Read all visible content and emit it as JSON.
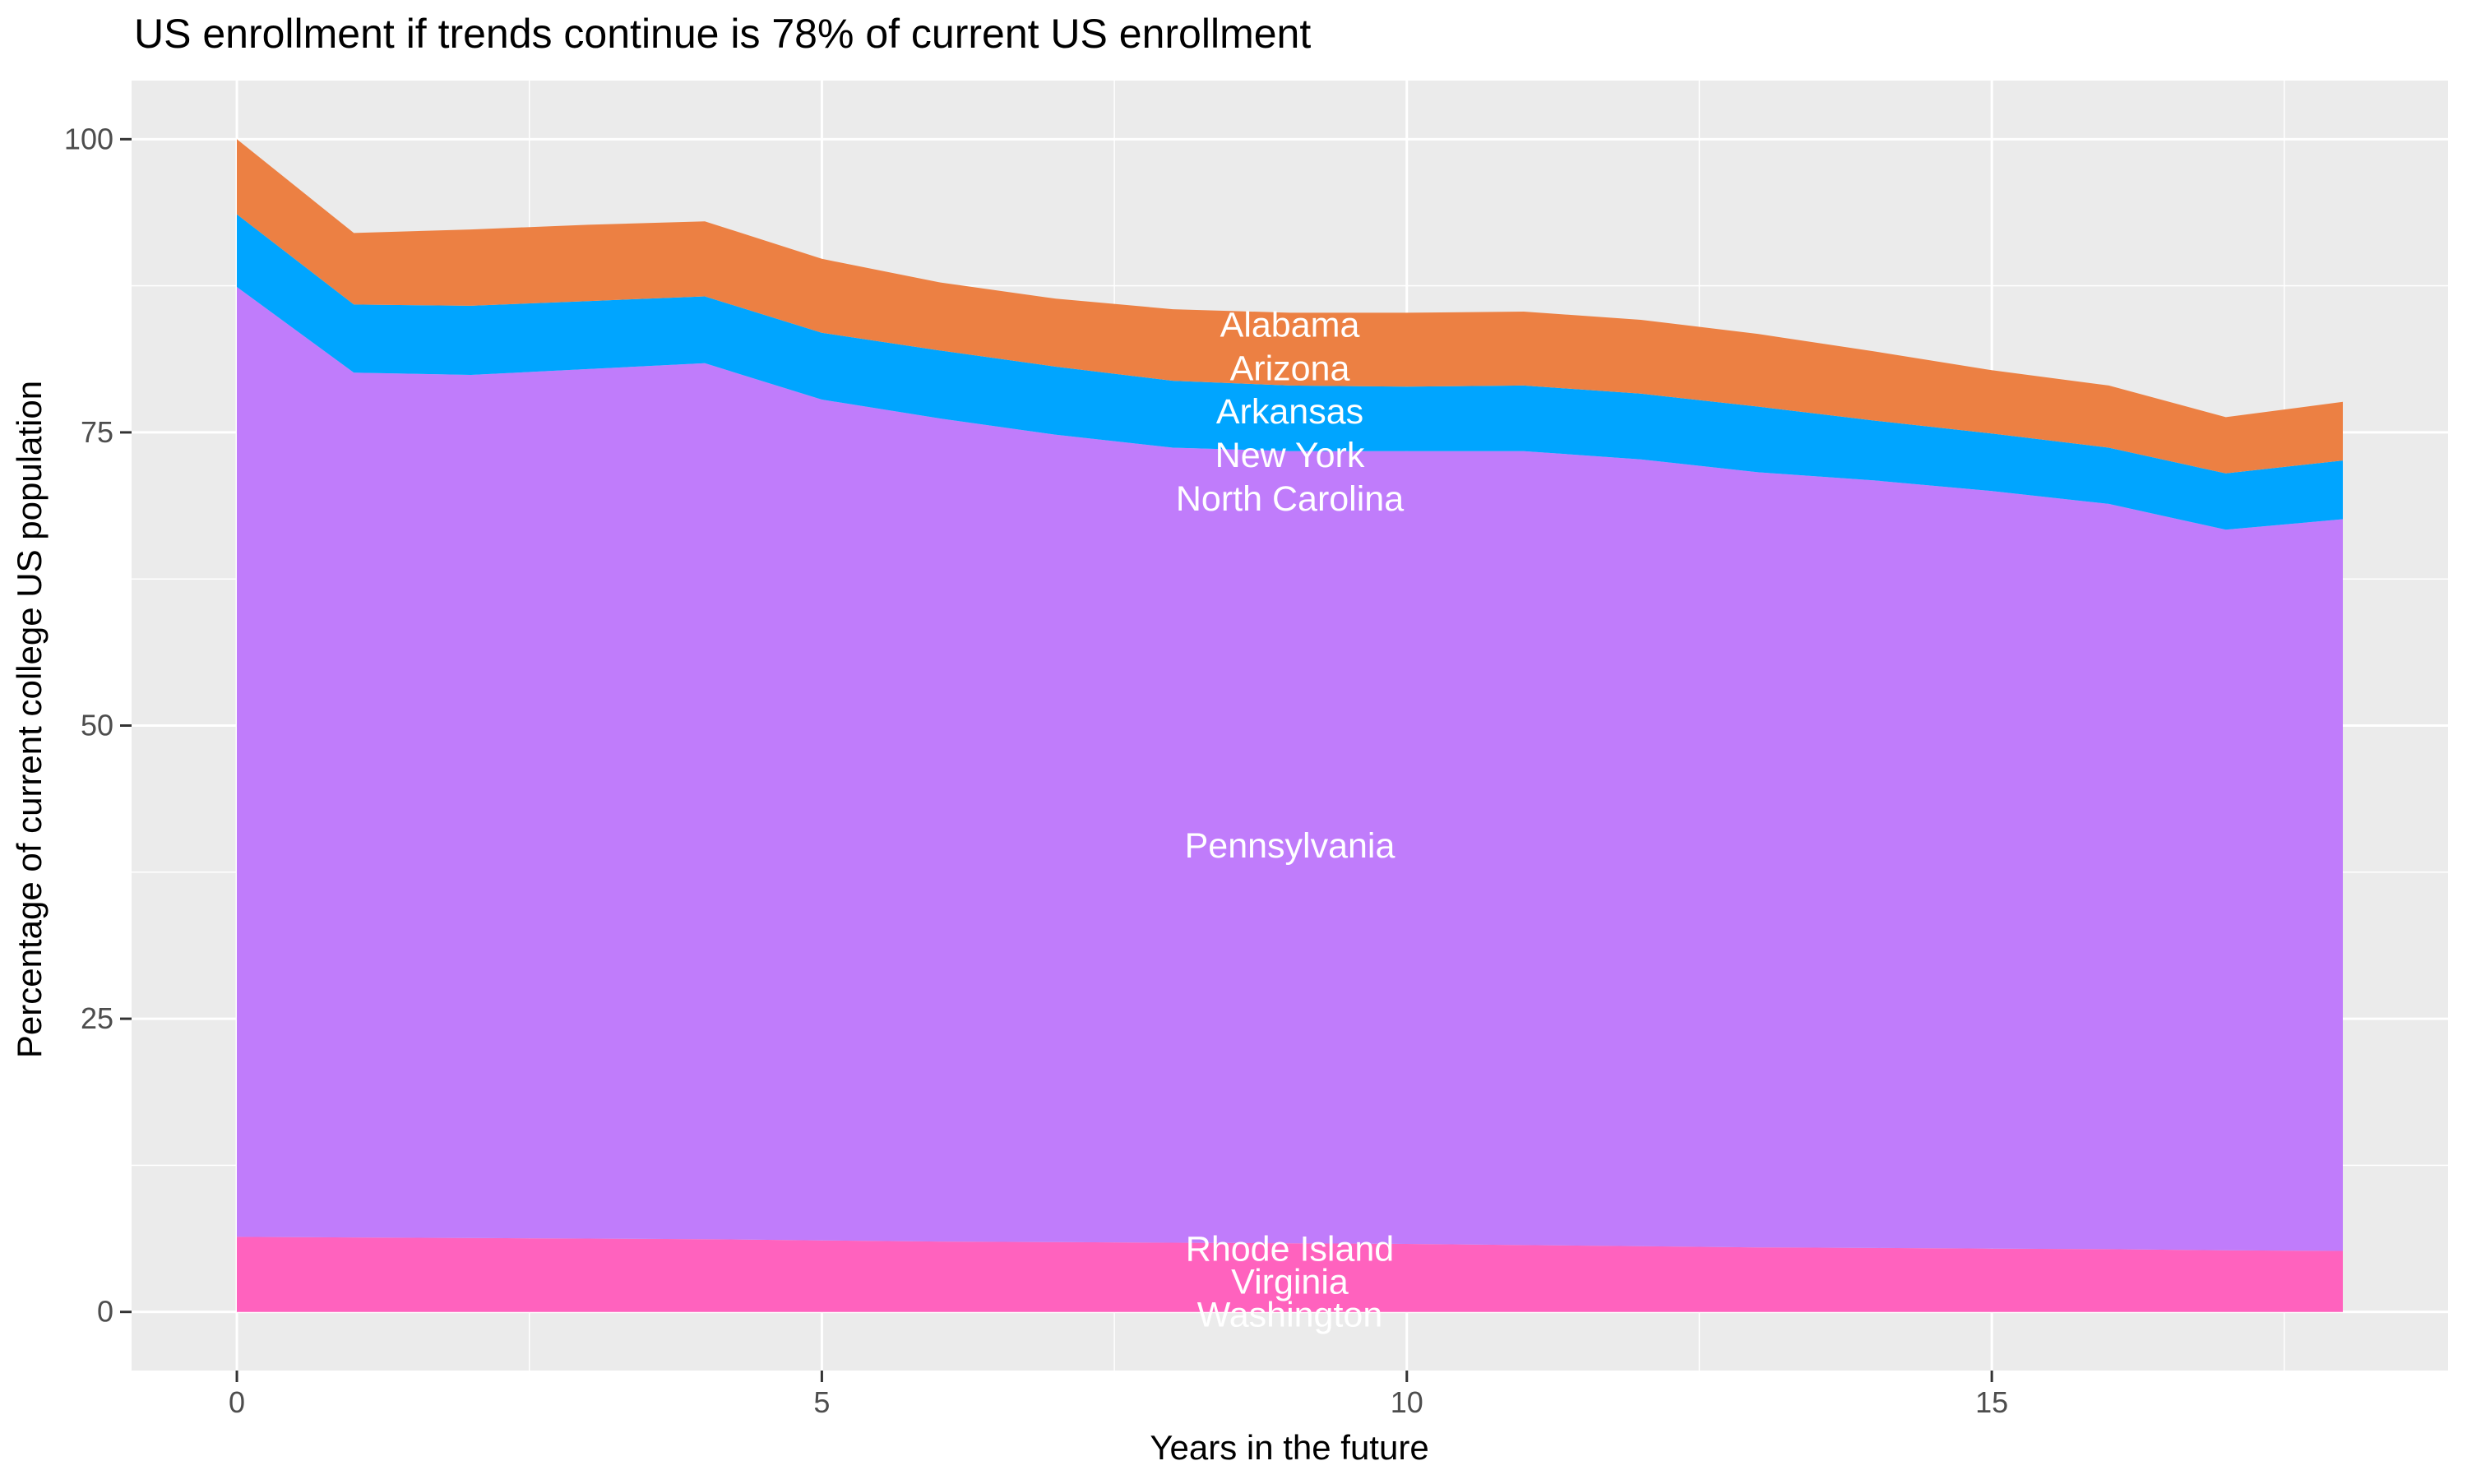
{
  "chart_data": {
    "type": "area",
    "title": "US enrollment if trends continue is 78% of current US enrollment",
    "xlabel": "Years in the future",
    "ylabel": "Percentage of current college US population",
    "legend_position": "none",
    "grid": true,
    "x": [
      0,
      1,
      2,
      3,
      4,
      5,
      6,
      7,
      8,
      9,
      10,
      11,
      12,
      13,
      14,
      15,
      16,
      17,
      18
    ],
    "stack_note": "series listed top band first; stacked bottom-up in reverse order; values are band thicknesses in percent",
    "series": [
      {
        "name": "Alabama / Arizona / Arkansas band",
        "color": "#EC8043",
        "values": [
          6.4,
          6.1,
          6.5,
          6.5,
          6.4,
          6.3,
          5.8,
          5.8,
          6.1,
          6.2,
          6.3,
          6.3,
          6.3,
          6.2,
          5.9,
          5.4,
          5.3,
          4.8,
          5.0
        ]
      },
      {
        "name": "New York / North Carolina band",
        "color": "#00A5FF",
        "values": [
          6.2,
          5.8,
          5.9,
          5.8,
          5.7,
          5.7,
          5.8,
          5.8,
          5.7,
          5.6,
          5.5,
          5.6,
          5.6,
          5.6,
          5.1,
          4.9,
          4.8,
          4.8,
          5.0
        ]
      },
      {
        "name": "Pennsylvania band",
        "color": "#C07CFB",
        "values": [
          81.0,
          73.75,
          73.6,
          74.15,
          74.7,
          71.7,
          70.2,
          68.85,
          67.8,
          67.55,
          67.6,
          67.7,
          67.1,
          66.1,
          65.45,
          64.6,
          63.55,
          61.45,
          62.4
        ]
      },
      {
        "name": "Rhode Island / Virginia / Washington band",
        "color": "#FF62BE",
        "values": [
          6.4,
          6.35,
          6.3,
          6.25,
          6.2,
          6.1,
          6.0,
          5.95,
          5.9,
          5.85,
          5.8,
          5.7,
          5.6,
          5.5,
          5.45,
          5.4,
          5.35,
          5.25,
          5.2
        ]
      }
    ],
    "stack_top_total": [
      100,
      92.0,
      92.3,
      92.7,
      93.0,
      89.8,
      87.8,
      86.4,
      85.5,
      85.2,
      85.2,
      85.3,
      84.6,
      83.4,
      81.9,
      80.3,
      79.0,
      76.3,
      77.6
    ],
    "annotations": [
      {
        "label": "Alabama",
        "x": 9,
        "y": 84.2
      },
      {
        "label": "Arizona",
        "x": 9,
        "y": 80.5
      },
      {
        "label": "Arkansas",
        "x": 9,
        "y": 76.8
      },
      {
        "label": "New York",
        "x": 9,
        "y": 73.1
      },
      {
        "label": "North Carolina",
        "x": 9,
        "y": 69.4
      },
      {
        "label": "Pennsylvania",
        "x": 9,
        "y": 39.8
      },
      {
        "label": "Rhode Island",
        "x": 9,
        "y": 5.4
      },
      {
        "label": "Virginia",
        "x": 9,
        "y": 2.6
      },
      {
        "label": "Washington",
        "x": 9,
        "y": -0.2
      }
    ],
    "x_axis": {
      "ticks": [
        0,
        5,
        10,
        15
      ],
      "tick_labels": [
        "0",
        "5",
        "10",
        "15"
      ],
      "minor": [
        2.5,
        7.5,
        12.5,
        17.5
      ],
      "range": [
        -0.9,
        18.9
      ]
    },
    "y_axis": {
      "ticks": [
        0,
        25,
        50,
        75,
        100
      ],
      "tick_labels": [
        "0",
        "25",
        "50",
        "75",
        "100"
      ],
      "minor": [
        12.5,
        37.5,
        62.5,
        87.5
      ],
      "range": [
        -5,
        105
      ]
    },
    "colors": {
      "panel_bg": "#EBEBEB",
      "grid": "#FFFFFF",
      "tick_mark": "#333333",
      "tick_text": "#4D4D4D",
      "text": "#000000",
      "area_label_text": "#FFFFFF"
    }
  }
}
